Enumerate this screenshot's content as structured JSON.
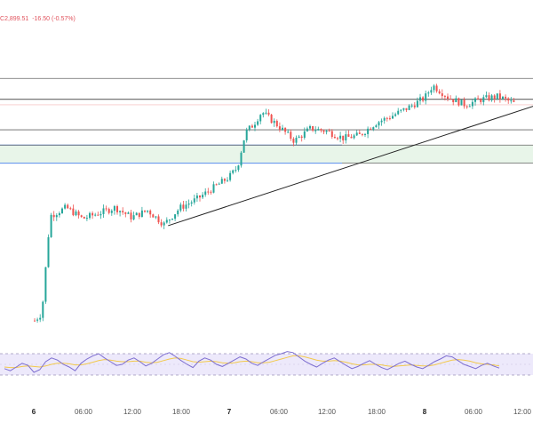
{
  "header": {
    "close_label": "C",
    "close_value": "2,899.51",
    "change": "-16.50",
    "change_pct": "(-0.57%)"
  },
  "colors": {
    "up": "#26a69a",
    "down": "#ef5350",
    "rsi_line": "#7e6fd0",
    "rsi_ma": "#f2c94c",
    "zone_fill": "#e8f5e9",
    "zone_border": "#5b8def",
    "level_line": "#666666"
  },
  "chart_data": [
    {
      "type": "candlestick",
      "x_ticks": [
        "6",
        "06:00",
        "12:00",
        "18:00",
        "7",
        "06:00",
        "12:00",
        "18:00",
        "8",
        "06:00",
        "12:00"
      ],
      "x_ticks_bold": [
        "6",
        "7",
        "8"
      ],
      "price_range": [
        2738,
        2937
      ],
      "horizontal_levels": [
        2917,
        2902,
        2898,
        2880,
        2869
      ],
      "support_zone": [
        2856,
        2869
      ],
      "trendline": {
        "from": [
          "6 16:30",
          2811
        ],
        "to": [
          "8 17:00",
          2904
        ]
      },
      "series": [
        {
          "kind": "price",
          "path": [
            [
              "6 00:00",
              2742
            ],
            [
              "6 01:00",
              2748
            ],
            [
              "6 02:00",
              2818
            ],
            [
              "6 04:00",
              2824
            ],
            [
              "6 06:00",
              2816
            ],
            [
              "6 08:00",
              2820
            ],
            [
              "6 10:00",
              2824
            ],
            [
              "6 12:00",
              2817
            ],
            [
              "6 14:00",
              2822
            ],
            [
              "6 16:00",
              2812
            ],
            [
              "6 18:00",
              2824
            ],
            [
              "6 20:00",
              2830
            ],
            [
              "7 00:00",
              2846
            ],
            [
              "7 01:00",
              2853
            ],
            [
              "7 02:00",
              2878
            ],
            [
              "7 03:00",
              2884
            ],
            [
              "7 04:00",
              2893
            ],
            [
              "7 06:00",
              2883
            ],
            [
              "7 08:00",
              2872
            ],
            [
              "7 10:00",
              2881
            ],
            [
              "7 12:00",
              2879
            ],
            [
              "7 14:00",
              2874
            ],
            [
              "7 16:00",
              2876
            ],
            [
              "7 18:00",
              2885
            ],
            [
              "7 20:00",
              2890
            ],
            [
              "7 22:00",
              2896
            ],
            [
              "8 00:00",
              2903
            ],
            [
              "8 01:00",
              2912
            ],
            [
              "8 03:00",
              2903
            ],
            [
              "8 05:00",
              2898
            ],
            [
              "8 07:00",
              2902
            ],
            [
              "8 09:00",
              2904
            ],
            [
              "8 11:00",
              2899
            ]
          ]
        }
      ]
    },
    {
      "type": "line",
      "y_range": [
        0,
        100
      ],
      "levels": [
        70,
        30
      ],
      "series": [
        {
          "kind": "rsi",
          "values": [
            42,
            38,
            45,
            52,
            48,
            35,
            40,
            55,
            62,
            58,
            50,
            45,
            38,
            52,
            60,
            66,
            70,
            62,
            55,
            48,
            50,
            58,
            62,
            55,
            47,
            52,
            60,
            68,
            72,
            65,
            57,
            50,
            44,
            56,
            62,
            58,
            50,
            46,
            52,
            58,
            64,
            60,
            52,
            48,
            55,
            61,
            67,
            70,
            74,
            72,
            64,
            56,
            50,
            45,
            52,
            58,
            62,
            55,
            48,
            42,
            46,
            52,
            57,
            50,
            44,
            40,
            46,
            52,
            56,
            50,
            45,
            42,
            48,
            55,
            60,
            66,
            64,
            57,
            50,
            46,
            42,
            48,
            52,
            47,
            43
          ]
        },
        {
          "kind": "rsi_ma",
          "values": [
            45,
            44,
            44,
            46,
            47,
            46,
            45,
            47,
            50,
            52,
            52,
            51,
            49,
            49,
            51,
            54,
            57,
            59,
            58,
            56,
            55,
            55,
            56,
            56,
            54,
            53,
            54,
            57,
            60,
            62,
            61,
            58,
            55,
            54,
            55,
            56,
            55,
            53,
            52,
            53,
            55,
            56,
            55,
            53,
            53,
            54,
            57,
            60,
            63,
            66,
            66,
            64,
            61,
            58,
            56,
            56,
            57,
            56,
            54,
            51,
            49,
            49,
            50,
            50,
            49,
            47,
            46,
            47,
            48,
            49,
            48,
            47,
            47,
            49,
            52,
            55,
            58,
            59,
            58,
            56,
            53,
            51,
            50,
            49,
            47
          ]
        }
      ]
    }
  ]
}
